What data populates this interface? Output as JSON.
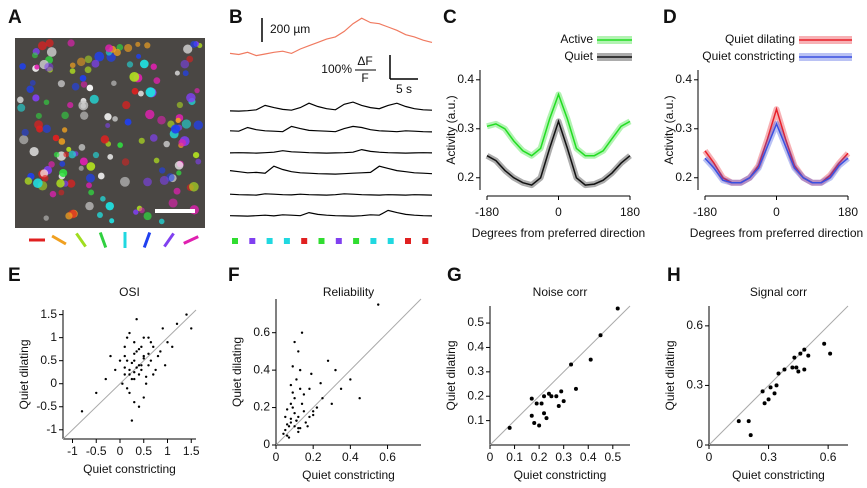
{
  "panel_labels": [
    "A",
    "B",
    "C",
    "D",
    "E",
    "F",
    "G",
    "H"
  ],
  "chart_data": [
    {
      "type": "traces",
      "x": [
        0,
        1,
        2,
        3,
        4,
        5,
        6,
        7,
        8,
        9,
        10,
        11,
        12,
        13,
        14,
        15,
        16,
        17,
        18,
        19,
        20,
        21,
        22,
        23
      ],
      "series": [
        {
          "color": "#f07a60",
          "values": [
            60,
            50,
            70,
            40,
            55,
            70,
            80,
            60,
            100,
            130,
            160,
            190,
            210,
            260,
            330,
            380,
            340,
            330,
            300,
            270,
            230,
            210,
            180,
            160
          ]
        },
        {
          "color": "#000000",
          "values": [
            5,
            4,
            6,
            10,
            30,
            20,
            12,
            8,
            20,
            40,
            25,
            15,
            10,
            35,
            45,
            30,
            20,
            15,
            30,
            40,
            25,
            15,
            10,
            8
          ]
        },
        {
          "color": "#000000",
          "values": [
            10,
            8,
            25,
            15,
            10,
            8,
            6,
            30,
            20,
            12,
            10,
            8,
            6,
            20,
            30,
            25,
            15,
            10,
            8,
            6,
            10,
            8,
            6,
            5
          ]
        },
        {
          "color": "#000000",
          "values": [
            5,
            6,
            5,
            4,
            6,
            8,
            15,
            10,
            8,
            6,
            5,
            4,
            5,
            6,
            8,
            20,
            12,
            8,
            6,
            5,
            4,
            5,
            6,
            5
          ]
        },
        {
          "color": "#000000",
          "values": [
            20,
            15,
            10,
            12,
            8,
            40,
            25,
            15,
            10,
            8,
            6,
            5,
            4,
            6,
            8,
            10,
            12,
            40,
            30,
            20,
            15,
            10,
            8,
            6
          ]
        },
        {
          "color": "#000000",
          "values": [
            8,
            6,
            5,
            4,
            10,
            8,
            6,
            5,
            8,
            6,
            5,
            4,
            6,
            10,
            8,
            6,
            5,
            4,
            6,
            5,
            4,
            6,
            5,
            4
          ]
        },
        {
          "color": "#000000",
          "values": [
            6,
            5,
            4,
            6,
            8,
            5,
            10,
            8,
            6,
            20,
            12,
            8,
            6,
            5,
            4,
            6,
            10,
            8,
            30,
            20,
            12,
            8,
            6,
            5
          ]
        }
      ],
      "pupil_scale": "200 µm",
      "dff_scale": "100%",
      "dff_numerator": "ΔF",
      "dff_denominator": "F",
      "time_scale": "5 s"
    },
    {
      "type": "line",
      "x_label": "Degrees from preferred direction",
      "y_label": "Activity (a.u.)",
      "x": [
        -180,
        -157.5,
        -135,
        -112.5,
        -90,
        -67.5,
        -45,
        -22.5,
        0,
        22.5,
        45,
        67.5,
        90,
        112.5,
        135,
        157.5,
        180
      ],
      "xlim": [
        -180,
        180
      ],
      "xticks": [
        -180,
        0,
        180
      ],
      "ylim": [
        0.175,
        0.42
      ],
      "yticks": [
        0.2,
        0.3,
        0.4
      ],
      "legend": "top-right",
      "series": [
        {
          "name": "Active",
          "color": "#22dd22",
          "values": [
            0.305,
            0.31,
            0.3,
            0.275,
            0.255,
            0.245,
            0.26,
            0.32,
            0.37,
            0.32,
            0.26,
            0.245,
            0.245,
            0.255,
            0.28,
            0.305,
            0.315
          ]
        },
        {
          "name": "Quiet",
          "color": "#111111",
          "values": [
            0.245,
            0.235,
            0.215,
            0.2,
            0.19,
            0.185,
            0.2,
            0.26,
            0.315,
            0.26,
            0.2,
            0.185,
            0.187,
            0.195,
            0.21,
            0.23,
            0.245
          ]
        }
      ]
    },
    {
      "type": "line",
      "x_label": "Degrees from preferred direction",
      "y_label": "Activity (a.u.)",
      "x": [
        -180,
        -157.5,
        -135,
        -112.5,
        -90,
        -67.5,
        -45,
        -22.5,
        0,
        22.5,
        45,
        67.5,
        90,
        112.5,
        135,
        157.5,
        180
      ],
      "xlim": [
        -180,
        180
      ],
      "xticks": [
        -180,
        0,
        180
      ],
      "ylim": [
        0.175,
        0.42
      ],
      "yticks": [
        0.2,
        0.3,
        0.4
      ],
      "legend": "top-right",
      "series": [
        {
          "name": "Quiet dilating",
          "color": "#e8202a",
          "values": [
            0.255,
            0.23,
            0.2,
            0.19,
            0.19,
            0.2,
            0.225,
            0.28,
            0.34,
            0.28,
            0.225,
            0.2,
            0.19,
            0.19,
            0.205,
            0.23,
            0.25
          ]
        },
        {
          "name": "Quiet constricting",
          "color": "#3a50e0",
          "values": [
            0.24,
            0.22,
            0.195,
            0.19,
            0.19,
            0.2,
            0.22,
            0.265,
            0.31,
            0.265,
            0.22,
            0.2,
            0.19,
            0.19,
            0.2,
            0.225,
            0.24
          ]
        }
      ]
    },
    {
      "type": "scatter",
      "title": "OSI",
      "x_label": "Quiet constricting",
      "y_label": "Quiet dilating",
      "xlim": [
        -1.2,
        1.6
      ],
      "xticks": [
        -1,
        -0.5,
        0,
        0.5,
        1,
        1.5
      ],
      "ylim": [
        -1.2,
        1.6
      ],
      "yticks": [
        -1,
        -0.5,
        0,
        0.5,
        1,
        1.5
      ],
      "identity_line": true,
      "color": "#000000",
      "x": [
        0.2,
        0.3,
        0.4,
        0.1,
        0.5,
        0.25,
        0.35,
        0.45,
        0.15,
        0.6,
        0.05,
        0.3,
        0.2,
        0.7,
        0.4,
        -0.1,
        0.8,
        0.3,
        0.5,
        0.1,
        0.9,
        0.35,
        0.25,
        0.55,
        -0.3,
        0.45,
        0.65,
        0.15,
        1.0,
        0.2,
        0.4,
        0.3,
        1.2,
        -0.5,
        0.6,
        0.1,
        0.75,
        0.5,
        0.35,
        1.4,
        0.0,
        0.25,
        0.85,
        -0.2,
        0.45,
        0.55,
        0.3,
        1.5,
        0.2,
        0.65,
        -0.8,
        0.4,
        0.95,
        0.1,
        0.5,
        0.3,
        1.1,
        0.7,
        0.15,
        0.6
      ],
      "y": [
        0.3,
        0.5,
        0.4,
        0.2,
        0.6,
        0.1,
        0.7,
        0.3,
        0.5,
        0.4,
        0.0,
        0.9,
        -0.2,
        0.8,
        0.2,
        0.3,
        0.6,
        -0.4,
        1.0,
        0.6,
        1.2,
        0.35,
        0.45,
        0.15,
        0.1,
        0.8,
        0.5,
        -0.1,
        0.9,
        1.1,
        -0.5,
        0.25,
        1.3,
        -0.2,
        1.0,
        0.8,
        0.3,
        0.55,
        1.4,
        1.5,
        0.5,
        -0.8,
        0.7,
        0.6,
        0.4,
        0.0,
        0.65,
        1.2,
        0.2,
        0.9,
        -0.6,
        0.75,
        0.4,
        0.35,
        -0.3,
        0.1,
        0.8,
        0.2,
        1.0,
        0.65
      ]
    },
    {
      "type": "scatter",
      "title": "Reliability",
      "x_label": "Quiet constricting",
      "y_label": "Quiet dilating",
      "xlim": [
        0,
        0.78
      ],
      "xticks": [
        0,
        0.2,
        0.4,
        0.6
      ],
      "ylim": [
        0,
        0.78
      ],
      "yticks": [
        0,
        0.2,
        0.4,
        0.6
      ],
      "identity_line": true,
      "color": "#000000",
      "x": [
        0.05,
        0.08,
        0.1,
        0.12,
        0.06,
        0.09,
        0.11,
        0.07,
        0.15,
        0.13,
        0.04,
        0.1,
        0.08,
        0.14,
        0.18,
        0.06,
        0.12,
        0.2,
        0.09,
        0.16,
        0.05,
        0.11,
        0.22,
        0.07,
        0.13,
        0.1,
        0.25,
        0.08,
        0.17,
        0.3,
        0.12,
        0.06,
        0.19,
        0.15,
        0.35,
        0.09,
        0.11,
        0.28,
        0.14,
        0.4,
        0.2,
        0.1,
        0.45,
        0.13,
        0.08,
        0.32,
        0.55,
        0.18,
        0.12,
        0.24
      ],
      "y": [
        0.08,
        0.12,
        0.1,
        0.15,
        0.05,
        0.2,
        0.13,
        0.1,
        0.18,
        0.09,
        0.06,
        0.25,
        0.14,
        0.22,
        0.3,
        0.11,
        0.07,
        0.16,
        0.28,
        0.12,
        0.15,
        0.35,
        0.2,
        0.04,
        0.4,
        0.17,
        0.25,
        0.32,
        0.1,
        0.22,
        0.5,
        0.19,
        0.38,
        0.27,
        0.3,
        0.42,
        0.13,
        0.45,
        0.6,
        0.35,
        0.18,
        0.55,
        0.25,
        0.3,
        0.22,
        0.4,
        0.75,
        0.15,
        0.09,
        0.33
      ]
    },
    {
      "type": "scatter",
      "title": "Noise corr",
      "x_label": "Quiet constricting",
      "y_label": "Quiet dilating",
      "xlim": [
        0,
        0.57
      ],
      "xticks": [
        0,
        0.1,
        0.2,
        0.3,
        0.4,
        0.5
      ],
      "ylim": [
        0,
        0.57
      ],
      "yticks": [
        0.1,
        0.2,
        0.3,
        0.4,
        0.5
      ],
      "identity_line": true,
      "color": "#000000",
      "x": [
        0.08,
        0.17,
        0.17,
        0.18,
        0.19,
        0.2,
        0.21,
        0.22,
        0.22,
        0.23,
        0.24,
        0.25,
        0.27,
        0.28,
        0.29,
        0.3,
        0.33,
        0.35,
        0.41,
        0.45,
        0.52
      ],
      "y": [
        0.07,
        0.19,
        0.12,
        0.09,
        0.17,
        0.08,
        0.17,
        0.13,
        0.2,
        0.11,
        0.21,
        0.2,
        0.2,
        0.16,
        0.22,
        0.18,
        0.33,
        0.23,
        0.35,
        0.45,
        0.56
      ]
    },
    {
      "type": "scatter",
      "title": "Signal corr",
      "x_label": "Quiet constricting",
      "y_label": "Quiet dilating",
      "xlim": [
        0,
        0.7
      ],
      "xticks": [
        0,
        0.3,
        0.6
      ],
      "ylim": [
        0,
        0.7
      ],
      "yticks": [
        0,
        0.3,
        0.6
      ],
      "identity_line": true,
      "color": "#000000",
      "x": [
        0.15,
        0.2,
        0.21,
        0.27,
        0.28,
        0.3,
        0.31,
        0.33,
        0.34,
        0.35,
        0.38,
        0.42,
        0.43,
        0.44,
        0.45,
        0.46,
        0.48,
        0.48,
        0.5,
        0.58,
        0.61
      ],
      "y": [
        0.12,
        0.12,
        0.05,
        0.27,
        0.21,
        0.23,
        0.29,
        0.26,
        0.3,
        0.36,
        0.38,
        0.39,
        0.44,
        0.39,
        0.37,
        0.46,
        0.48,
        0.38,
        0.45,
        0.51,
        0.46
      ]
    }
  ]
}
